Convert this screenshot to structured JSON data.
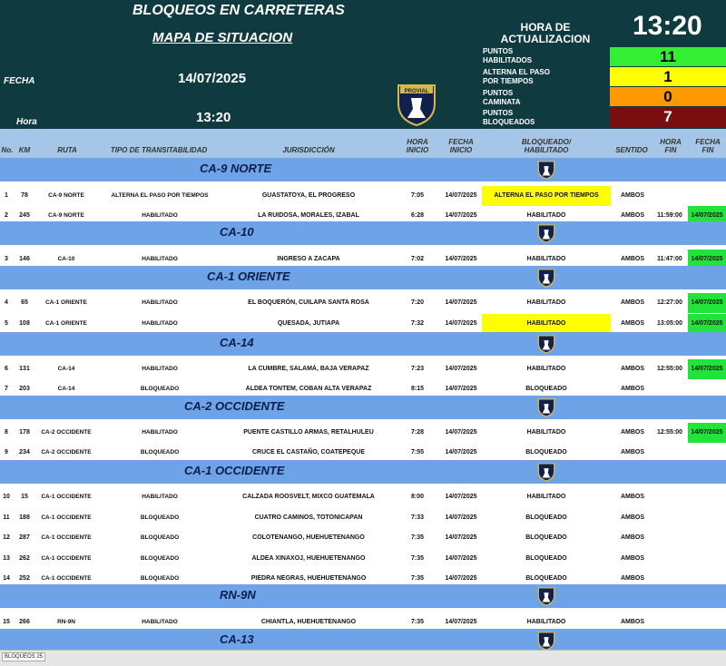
{
  "header": {
    "title": "BLOQUEOS EN CARRETERAS",
    "subtitle": "MAPA DE SITUACION",
    "fecha_label": "FECHA",
    "fecha_value": "14/07/2025",
    "hora_label": "Hora",
    "hora_value": "13:20",
    "update_label_1": "HORA DE",
    "update_label_2": "ACTUALIZACION",
    "update_value": "13:20",
    "logo_text": "PROVIAL",
    "stats": [
      {
        "label_1": "PUNTOS",
        "label_2": "HABILITADOS",
        "value": "11",
        "color": "#33ee33"
      },
      {
        "label_1": "ALTERNA EL PASO",
        "label_2": "POR TIEMPOS",
        "value": "1",
        "color": "#ffff00"
      },
      {
        "label_1": "PUNTOS",
        "label_2": "CAMINATA",
        "value": "0",
        "color": "#ff9900"
      },
      {
        "label_1": "PUNTOS",
        "label_2": "BLOQUEADOS",
        "value": "7",
        "color": "#7a0d0d"
      }
    ]
  },
  "columns": {
    "no": "No.",
    "km": "KM",
    "ruta": "RUTA",
    "tipo": "TIPO DE TRANSITABILIDAD",
    "jurisdiccion": "JURISDICCIÓN",
    "hora_inicio_1": "HORA",
    "hora_inicio_2": "INICIO",
    "fecha_inicio_1": "FECHA",
    "fecha_inicio_2": "INICIO",
    "estado_1": "BLOQUEADO/",
    "estado_2": "HABILITADO",
    "sentido": "SENTIDO",
    "hora_fin_1": "HORA",
    "hora_fin_2": "FIN",
    "fecha_fin_1": "FECHA",
    "fecha_fin_2": "FIN"
  },
  "sections": [
    {
      "name": "CA-9 NORTE",
      "rows": [
        {
          "no": "1",
          "km": "78",
          "ruta": "CA-9 NORTE",
          "tipo": "ALTERNA EL PASO POR TIEMPOS",
          "jurisdiccion": "GUASTATOYA, EL PROGRESO",
          "hora_inicio": "7:05",
          "fecha_inicio": "14/07/2025",
          "estado": "ALTERNA EL PASO POR TIEMPOS",
          "estado_hl": "yellow",
          "sentido": "AMBOS",
          "hora_fin": "",
          "fecha_fin": ""
        },
        {
          "no": "2",
          "km": "245",
          "ruta": "CA-9 NORTE",
          "tipo": "HABILITADO",
          "jurisdiccion": "LA RUIDOSA, MORALES, IZABAL",
          "hora_inicio": "6:28",
          "fecha_inicio": "14/07/2025",
          "estado": "HABILITADO",
          "estado_hl": "",
          "sentido": "AMBOS",
          "hora_fin": "11:59:00",
          "fecha_fin": "14/07/2025"
        }
      ]
    },
    {
      "name": "CA-10",
      "rows": [
        {
          "no": "3",
          "km": "146",
          "ruta": "CA-10",
          "tipo": "HABILITADO",
          "jurisdiccion": "INGRESO A ZACAPA",
          "hora_inicio": "7:02",
          "fecha_inicio": "14/07/2025",
          "estado": "HABILITADO",
          "estado_hl": "",
          "sentido": "AMBOS",
          "hora_fin": "11:47:00",
          "fecha_fin": "14/07/2025"
        }
      ]
    },
    {
      "name": "CA-1 ORIENTE",
      "rows": [
        {
          "no": "4",
          "km": "65",
          "ruta": "CA-1 ORIENTE",
          "tipo": "HABILITADO",
          "jurisdiccion": "EL BOQUERÓN, CUILAPA SANTA ROSA",
          "hora_inicio": "7:20",
          "fecha_inicio": "14/07/2025",
          "estado": "HABILITADO",
          "estado_hl": "",
          "sentido": "AMBOS",
          "hora_fin": "12:27:00",
          "fecha_fin": "14/07/2025"
        },
        {
          "no": "5",
          "km": "108",
          "ruta": "CA-1 ORIENTE",
          "tipo": "HABILITADO",
          "jurisdiccion": "QUESADA, JUTIAPA",
          "hora_inicio": "7:32",
          "fecha_inicio": "14/07/2025",
          "estado": "HABILITADO",
          "estado_hl": "yellow",
          "sentido": "AMBOS",
          "hora_fin": "13:05:00",
          "fecha_fin": "14/07/2025"
        }
      ]
    },
    {
      "name": "CA-14",
      "rows": [
        {
          "no": "6",
          "km": "131",
          "ruta": "CA-14",
          "tipo": "HABILITADO",
          "jurisdiccion": "LA CUMBRE, SALAMÁ, BAJA VERAPAZ",
          "hora_inicio": "7:23",
          "fecha_inicio": "14/07/2025",
          "estado": "HABILITADO",
          "estado_hl": "",
          "sentido": "AMBOS",
          "hora_fin": "12:55:00",
          "fecha_fin": "14/07/2025"
        },
        {
          "no": "7",
          "km": "203",
          "ruta": "CA-14",
          "tipo": "BLOQUEADO",
          "jurisdiccion": "ALDEA TONTEM, COBAN ALTA VERAPAZ",
          "hora_inicio": "8:15",
          "fecha_inicio": "14/07/2025",
          "estado": "BLOQUEADO",
          "estado_hl": "",
          "sentido": "AMBOS",
          "hora_fin": "",
          "fecha_fin": ""
        }
      ]
    },
    {
      "name": "CA-2 OCCIDENTE",
      "rows": [
        {
          "no": "8",
          "km": "178",
          "ruta": "CA-2 OCCIDENTE",
          "tipo": "HABILITADO",
          "jurisdiccion": "PUENTE CASTILLO ARMAS, RETALHULEU",
          "hora_inicio": "7:28",
          "fecha_inicio": "14/07/2025",
          "estado": "HABILITADO",
          "estado_hl": "",
          "sentido": "AMBOS",
          "hora_fin": "12:55:00",
          "fecha_fin": "14/07/2025"
        },
        {
          "no": "9",
          "km": "234",
          "ruta": "CA-2 OCCIDENTE",
          "tipo": "BLOQUEADO",
          "jurisdiccion": "CRUCE EL CASTAÑO, COATEPEQUE",
          "hora_inicio": "7:55",
          "fecha_inicio": "14/07/2025",
          "estado": "BLOQUEADO",
          "estado_hl": "",
          "sentido": "AMBOS",
          "hora_fin": "",
          "fecha_fin": ""
        }
      ]
    },
    {
      "name": "CA-1 OCCIDENTE",
      "rows": [
        {
          "no": "10",
          "km": "15",
          "ruta": "CA-1 OCCIDENTE",
          "tipo": "HABILITADO",
          "jurisdiccion": "CALZADA ROOSVELT, MIXCO GUATEMALA",
          "hora_inicio": "8:00",
          "fecha_inicio": "14/07/2025",
          "estado": "HABILITADO",
          "estado_hl": "",
          "sentido": "AMBOS",
          "hora_fin": "",
          "fecha_fin": ""
        },
        {
          "no": "11",
          "km": "188",
          "ruta": "CA-1 OCCIDENTE",
          "tipo": "BLOQUEADO",
          "jurisdiccion": "CUATRO CAMINOS, TOTONICAPAN",
          "hora_inicio": "7:33",
          "fecha_inicio": "14/07/2025",
          "estado": "BLOQUEADO",
          "estado_hl": "",
          "sentido": "AMBOS",
          "hora_fin": "",
          "fecha_fin": ""
        },
        {
          "no": "12",
          "km": "287",
          "ruta": "CA-1 OCCIDENTE",
          "tipo": "BLOQUEADO",
          "jurisdiccion": "COLOTENANGO, HUEHUETENANGO",
          "hora_inicio": "7:35",
          "fecha_inicio": "14/07/2025",
          "estado": "BLOQUEADO",
          "estado_hl": "",
          "sentido": "AMBOS",
          "hora_fin": "",
          "fecha_fin": ""
        },
        {
          "no": "13",
          "km": "262",
          "ruta": "CA-1 OCCIDENTE",
          "tipo": "BLOQUEADO",
          "jurisdiccion": "ALDEA XINAXOJ, HUEHUETENANGO",
          "hora_inicio": "7:35",
          "fecha_inicio": "14/07/2025",
          "estado": "BLOQUEADO",
          "estado_hl": "",
          "sentido": "AMBOS",
          "hora_fin": "",
          "fecha_fin": ""
        },
        {
          "no": "14",
          "km": "252",
          "ruta": "CA-1 OCCIDENTE",
          "tipo": "BLOQUEADO",
          "jurisdiccion": "PIEDRA NEGRAS, HUEHUETENANGO",
          "hora_inicio": "7:35",
          "fecha_inicio": "14/07/2025",
          "estado": "BLOQUEADO",
          "estado_hl": "",
          "sentido": "AMBOS",
          "hora_fin": "",
          "fecha_fin": ""
        }
      ]
    },
    {
      "name": "RN-9N",
      "rows": [
        {
          "no": "15",
          "km": "266",
          "ruta": "RN-9N",
          "tipo": "HABILITADO",
          "jurisdiccion": "CHIANTLA, HUEHUETENANGO",
          "hora_inicio": "7:35",
          "fecha_inicio": "14/07/2025",
          "estado": "HABILITADO",
          "estado_hl": "",
          "sentido": "AMBOS",
          "hora_fin": "",
          "fecha_fin": ""
        }
      ]
    },
    {
      "name": "CA-13",
      "rows": []
    }
  ],
  "sheet_tab": "BLOQUEOS 25"
}
